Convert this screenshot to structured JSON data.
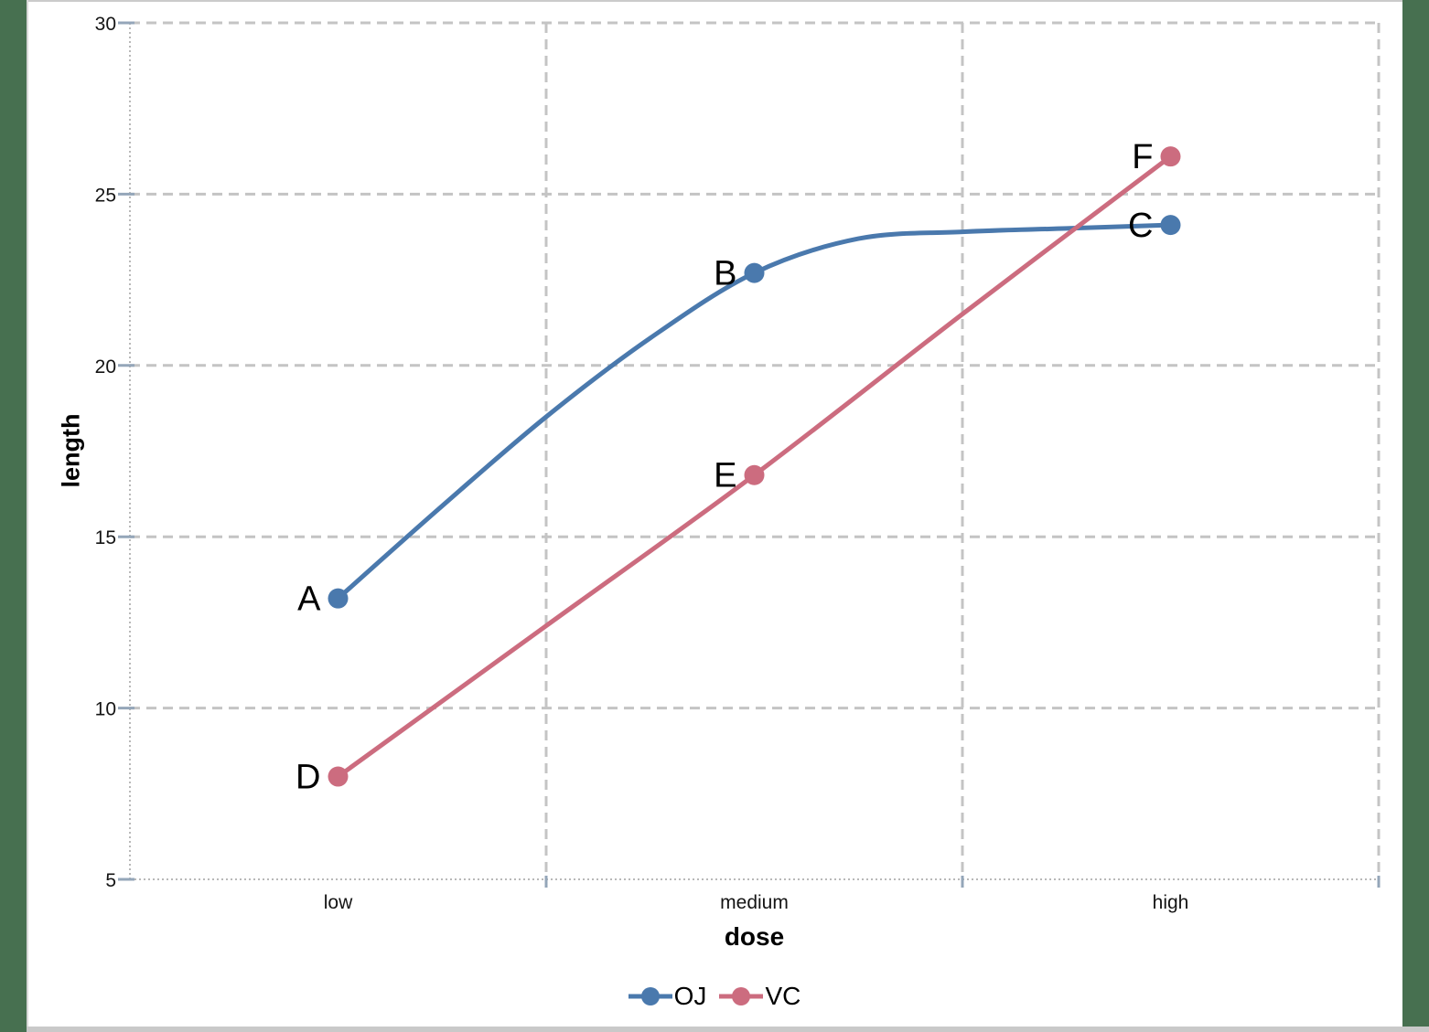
{
  "frame": {
    "side_panel_color": "#477050",
    "border_color": "#c9c9c9"
  },
  "chart_data": {
    "type": "line",
    "title": "",
    "categories": [
      "low",
      "medium",
      "high"
    ],
    "xlabel": "dose",
    "ylabel": "length",
    "ylim": [
      5,
      30
    ],
    "y_ticks": [
      5,
      10,
      15,
      20,
      25,
      30
    ],
    "grid": "dashed gray horizontal gridlines at each y tick; dashed vertical panel boundaries between categories and at right edge; dotted left and bottom axes",
    "legend": {
      "position": "bottom-center",
      "entries": [
        "OJ",
        "VC"
      ]
    },
    "series": [
      {
        "name": "OJ",
        "color": "#4a79ad",
        "values": [
          13.2,
          22.7,
          24.1
        ],
        "point_labels": [
          "A",
          "B",
          "C"
        ],
        "curve_samples_x": [
          0,
          0.25,
          0.5,
          0.75,
          1,
          1.25,
          1.5,
          1.75,
          2
        ],
        "curve_samples_y": [
          13.2,
          15.9,
          18.5,
          20.8,
          22.7,
          23.7,
          23.9,
          24.0,
          24.1
        ]
      },
      {
        "name": "VC",
        "color": "#cc6c7f",
        "values": [
          8.0,
          16.8,
          26.1
        ],
        "point_labels": [
          "D",
          "E",
          "F"
        ],
        "curve_samples_x": [
          0,
          0.5,
          1,
          1.5,
          2
        ],
        "curve_samples_y": [
          8.0,
          12.4,
          16.8,
          21.5,
          26.1
        ]
      }
    ]
  }
}
